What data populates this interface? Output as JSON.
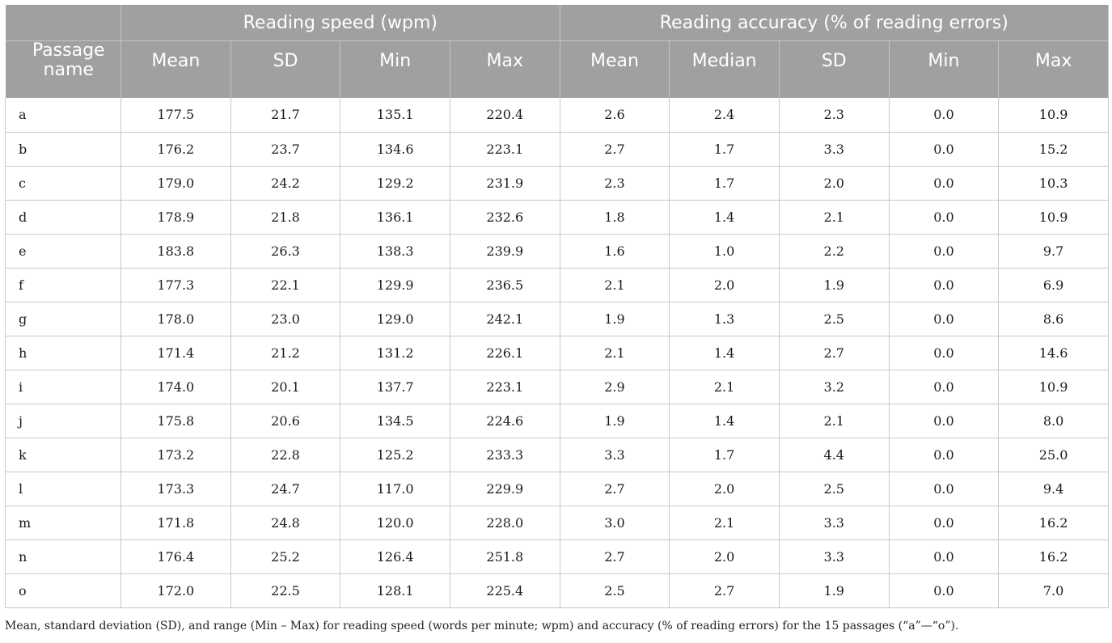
{
  "table": {
    "passage_header": "Passage name",
    "groups": [
      {
        "label": "Reading speed (wpm)",
        "columns": [
          "Mean",
          "SD",
          "Min",
          "Max"
        ]
      },
      {
        "label": "Reading accuracy (% of reading errors)",
        "columns": [
          "Mean",
          "Median",
          "SD",
          "Min",
          "Max"
        ]
      }
    ],
    "rows": [
      {
        "name": "a",
        "values": [
          "177.5",
          "21.7",
          "135.1",
          "220.4",
          "2.6",
          "2.4",
          "2.3",
          "0.0",
          "10.9"
        ]
      },
      {
        "name": "b",
        "values": [
          "176.2",
          "23.7",
          "134.6",
          "223.1",
          "2.7",
          "1.7",
          "3.3",
          "0.0",
          "15.2"
        ]
      },
      {
        "name": "c",
        "values": [
          "179.0",
          "24.2",
          "129.2",
          "231.9",
          "2.3",
          "1.7",
          "2.0",
          "0.0",
          "10.3"
        ]
      },
      {
        "name": "d",
        "values": [
          "178.9",
          "21.8",
          "136.1",
          "232.6",
          "1.8",
          "1.4",
          "2.1",
          "0.0",
          "10.9"
        ]
      },
      {
        "name": "e",
        "values": [
          "183.8",
          "26.3",
          "138.3",
          "239.9",
          "1.6",
          "1.0",
          "2.2",
          "0.0",
          "9.7"
        ]
      },
      {
        "name": "f",
        "values": [
          "177.3",
          "22.1",
          "129.9",
          "236.5",
          "2.1",
          "2.0",
          "1.9",
          "0.0",
          "6.9"
        ]
      },
      {
        "name": "g",
        "values": [
          "178.0",
          "23.0",
          "129.0",
          "242.1",
          "1.9",
          "1.3",
          "2.5",
          "0.0",
          "8.6"
        ]
      },
      {
        "name": "h",
        "values": [
          "171.4",
          "21.2",
          "131.2",
          "226.1",
          "2.1",
          "1.4",
          "2.7",
          "0.0",
          "14.6"
        ]
      },
      {
        "name": "i",
        "values": [
          "174.0",
          "20.1",
          "137.7",
          "223.1",
          "2.9",
          "2.1",
          "3.2",
          "0.0",
          "10.9"
        ]
      },
      {
        "name": "j",
        "values": [
          "175.8",
          "20.6",
          "134.5",
          "224.6",
          "1.9",
          "1.4",
          "2.1",
          "0.0",
          "8.0"
        ]
      },
      {
        "name": "k",
        "values": [
          "173.2",
          "22.8",
          "125.2",
          "233.3",
          "3.3",
          "1.7",
          "4.4",
          "0.0",
          "25.0"
        ]
      },
      {
        "name": "l",
        "values": [
          "173.3",
          "24.7",
          "117.0",
          "229.9",
          "2.7",
          "2.0",
          "2.5",
          "0.0",
          "9.4"
        ]
      },
      {
        "name": "m",
        "values": [
          "171.8",
          "24.8",
          "120.0",
          "228.0",
          "3.0",
          "2.1",
          "3.3",
          "0.0",
          "16.2"
        ]
      },
      {
        "name": "n",
        "values": [
          "176.4",
          "25.2",
          "126.4",
          "251.8",
          "2.7",
          "2.0",
          "3.3",
          "0.0",
          "16.2"
        ]
      },
      {
        "name": "o",
        "values": [
          "172.0",
          "22.5",
          "128.1",
          "225.4",
          "2.5",
          "2.7",
          "1.9",
          "0.0",
          "7.0"
        ]
      }
    ]
  },
  "footnote": "Mean, standard deviation (SD), and range (Min – Max) for reading speed (words per minute; wpm) and accuracy (% of reading errors) for the 15 passages (“a”—“o”).",
  "colors": {
    "header_background": "#a0a0a0",
    "header_text": "#ffffff",
    "grid_lines": "#c8c8c8"
  }
}
